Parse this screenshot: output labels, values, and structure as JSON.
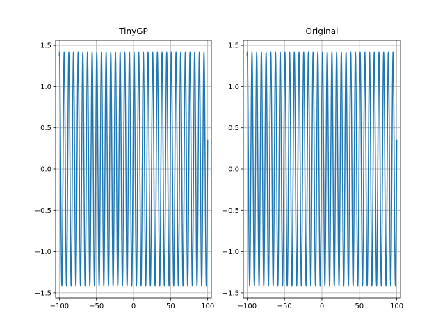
{
  "chart_data": [
    {
      "type": "line",
      "title": "TinyGP",
      "xlabel": "",
      "ylabel": "",
      "xlim": [
        -105,
        105
      ],
      "ylim": [
        -1.56,
        1.56
      ],
      "xticks": [
        -100,
        -50,
        0,
        50,
        100
      ],
      "xtick_labels": [
        "−100",
        "−50",
        "0",
        "50",
        "100"
      ],
      "yticks": [
        -1.5,
        -1.0,
        -0.5,
        0.0,
        0.5,
        1.0,
        1.5
      ],
      "ytick_labels": [
        "−1.5",
        "−1.0",
        "−0.5",
        "0.0",
        "0.5",
        "1.0",
        "1.5"
      ],
      "grid": true,
      "series": [
        {
          "color": "#1f77b4",
          "function": "sqrt(2)*sin(x + pi/4)",
          "x_range": [
            -100,
            100
          ],
          "amplitude": 1.414,
          "y_end": 0.36
        }
      ]
    },
    {
      "type": "line",
      "title": "Original",
      "xlabel": "",
      "ylabel": "",
      "xlim": [
        -105,
        105
      ],
      "ylim": [
        -1.56,
        1.56
      ],
      "xticks": [
        -100,
        -50,
        0,
        50,
        100
      ],
      "xtick_labels": [
        "−100",
        "−50",
        "0",
        "50",
        "100"
      ],
      "yticks": [
        -1.5,
        -1.0,
        -0.5,
        0.0,
        0.5,
        1.0,
        1.5
      ],
      "ytick_labels": [
        "−1.5",
        "−1.0",
        "−0.5",
        "0.0",
        "0.5",
        "1.0",
        "1.5"
      ],
      "grid": true,
      "series": [
        {
          "color": "#1f77b4",
          "function": "sin(x) + cos(x)",
          "x_range": [
            -100,
            100
          ],
          "amplitude": 1.414,
          "y_end": 0.36
        }
      ]
    }
  ]
}
